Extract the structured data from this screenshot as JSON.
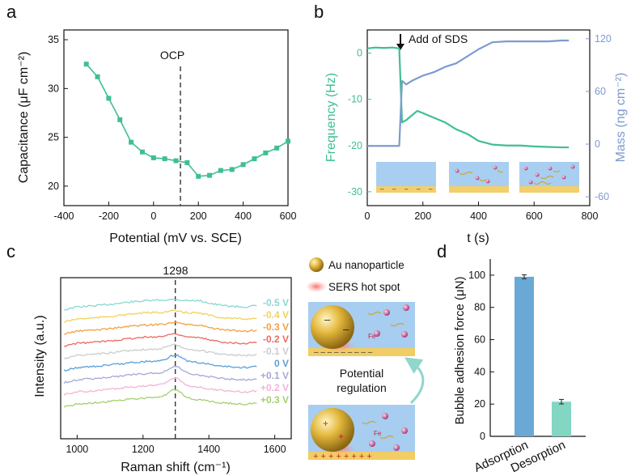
{
  "panels": {
    "a": "a",
    "b": "b",
    "c": "c",
    "d": "d"
  },
  "chart_data": [
    {
      "panel": "a",
      "type": "line",
      "xlabel": "Potential (mV vs. SCE)",
      "ylabel": "Capacitance (μF cm⁻²)",
      "xlim": [
        -400,
        600
      ],
      "ylim": [
        18,
        36
      ],
      "xticks": [
        "-400",
        "-200",
        "0",
        "200",
        "400",
        "600"
      ],
      "yticks": [
        "20",
        "25",
        "30",
        "35"
      ],
      "annotation": "OCP",
      "annotation_x": 120,
      "color": "#3fbf92",
      "x": [
        -300,
        -250,
        -200,
        -150,
        -100,
        -50,
        0,
        50,
        100,
        150,
        200,
        250,
        300,
        350,
        400,
        450,
        500,
        550,
        600
      ],
      "y": [
        32.5,
        31.2,
        29.0,
        26.8,
        24.5,
        23.5,
        22.9,
        22.8,
        22.6,
        22.4,
        21.0,
        21.1,
        21.6,
        21.7,
        22.2,
        22.8,
        23.4,
        23.9,
        24.6
      ]
    },
    {
      "panel": "b",
      "type": "line",
      "xlabel": "t (s)",
      "ylabel_left": "Frequency (Hz)",
      "ylabel_right": "Mass (ng cm⁻²)",
      "xlim": [
        0,
        800
      ],
      "ylim_left": [
        -33,
        5
      ],
      "ylim_right": [
        -70,
        130
      ],
      "xticks": [
        "0",
        "200",
        "400",
        "600",
        "800"
      ],
      "yticks_left": [
        "0",
        "-10",
        "-20",
        "-30"
      ],
      "yticks_right": [
        "120",
        "60",
        "0",
        "-60"
      ],
      "annotation": "Add of SDS",
      "annotation_x": 120,
      "series": [
        {
          "axis": "left",
          "color": "#3fbf92",
          "x": [
            0,
            30,
            60,
            90,
            115,
            125,
            140,
            160,
            180,
            200,
            240,
            280,
            320,
            360,
            400,
            450,
            500,
            550,
            600,
            650,
            700,
            725
          ],
          "y": [
            1.0,
            1.2,
            1.1,
            1.2,
            1.0,
            -15,
            -14.5,
            -13.5,
            -12.5,
            -13,
            -14,
            -15,
            -16.5,
            -17.5,
            -19,
            -19.8,
            -20,
            -20,
            -20.2,
            -20.3,
            -20.4,
            -20.4
          ]
        },
        {
          "axis": "right",
          "color": "#7c9bd0",
          "x": [
            0,
            30,
            60,
            90,
            115,
            125,
            140,
            160,
            200,
            240,
            280,
            320,
            360,
            400,
            450,
            500,
            550,
            600,
            650,
            700,
            725
          ],
          "y": [
            -2,
            -2,
            -2,
            -2,
            -2,
            72,
            68,
            72,
            78,
            82,
            88,
            92,
            100,
            108,
            116,
            117,
            117,
            117,
            117,
            118,
            118
          ]
        }
      ]
    },
    {
      "panel": "c",
      "type": "line",
      "xlabel": "Raman shift (cm⁻¹)",
      "ylabel": "Intensity (a.u.)",
      "xlim": [
        950,
        1650
      ],
      "xticks": [
        "1000",
        "1200",
        "1400",
        "1600"
      ],
      "annotation": "1298",
      "annotation_x": 1298,
      "series": [
        {
          "name": "-0.5 V",
          "color": "#86d8d3",
          "offset": 8,
          "peak": 0.2
        },
        {
          "name": "-0.4 V",
          "color": "#f1d25c",
          "offset": 7,
          "peak": 0.3
        },
        {
          "name": "-0.3 V",
          "color": "#f2a040",
          "offset": 6,
          "peak": 0.45
        },
        {
          "name": "-0.2 V",
          "color": "#ea6b5f",
          "offset": 5,
          "peak": 0.55
        },
        {
          "name": "-0.1 V",
          "color": "#cccccc",
          "offset": 4,
          "peak": 0.7
        },
        {
          "name": "0 V",
          "color": "#5aa0d8",
          "offset": 3,
          "peak": 1.0
        },
        {
          "name": "+0.1 V",
          "color": "#a6a8d8",
          "offset": 2,
          "peak": 1.1
        },
        {
          "name": "+0.2 V",
          "color": "#f3b3d3",
          "offset": 1,
          "peak": 1.2
        },
        {
          "name": "+0.3 V",
          "color": "#a4d06d",
          "offset": 0,
          "peak": 1.3
        }
      ]
    },
    {
      "panel": "d",
      "type": "bar",
      "ylabel": "Bubble adhesion force (μN)",
      "ylim": [
        0,
        110
      ],
      "yticks": [
        "0",
        "20",
        "40",
        "60",
        "80",
        "100"
      ],
      "categories": [
        "Adsorption",
        "Desorption"
      ],
      "values": [
        99,
        21.5
      ],
      "errors": [
        1.2,
        1.4
      ],
      "colors": [
        "#6aa8d5",
        "#82d6c2"
      ]
    }
  ],
  "legend": {
    "au_label": "Au nanoparticle",
    "sers_label": "SERS hot spot",
    "regulation_label": "Potential regulation",
    "fe_label": "Fe"
  }
}
